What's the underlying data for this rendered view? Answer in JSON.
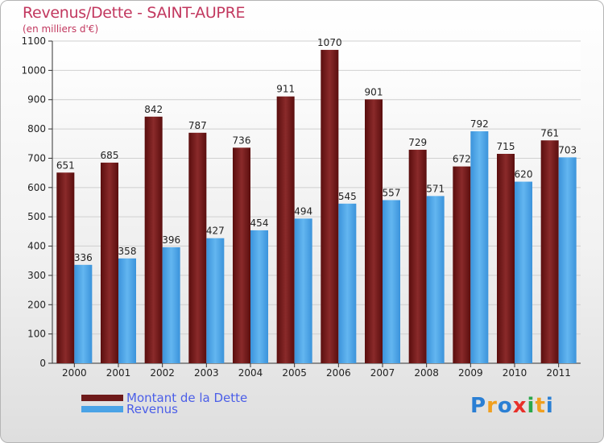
{
  "header": {
    "title": "Revenus/Dette - SAINT-AUPRE",
    "subtitle": "(en milliers d'€)"
  },
  "logo": {
    "text": "Proxiti",
    "colors": [
      "#2a7fd4",
      "#f0a020",
      "#2a7fd4",
      "#e8302a",
      "#2aa84a",
      "#f0a020",
      "#2a7fd4"
    ]
  },
  "colors": {
    "dette": "#6e1a1a",
    "revenus": "#4aa3e6",
    "title": "#c2385f",
    "legend_text": "#4b5ee8"
  },
  "chart_data": {
    "type": "bar",
    "categories": [
      "2000",
      "2001",
      "2002",
      "2003",
      "2004",
      "2005",
      "2006",
      "2007",
      "2008",
      "2009",
      "2010",
      "2011"
    ],
    "series": [
      {
        "name": "Montant de la Dette",
        "values": [
          651,
          685,
          842,
          787,
          736,
          911,
          1070,
          901,
          729,
          672,
          715,
          761
        ]
      },
      {
        "name": "Revenus",
        "values": [
          336,
          358,
          396,
          427,
          454,
          494,
          545,
          557,
          571,
          792,
          620,
          703
        ]
      }
    ],
    "title": "Revenus/Dette - SAINT-AUPRE",
    "subtitle": "(en milliers d'€)",
    "ylim": [
      0,
      1100
    ],
    "yticks": [
      0,
      100,
      200,
      300,
      400,
      500,
      600,
      700,
      800,
      900,
      1000,
      1100
    ],
    "grid": true,
    "legend_position": "bottom-left"
  }
}
